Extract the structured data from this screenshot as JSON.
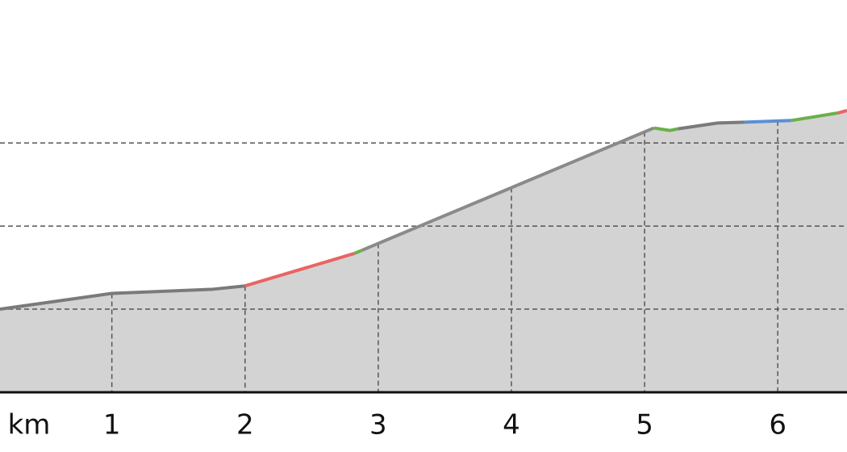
{
  "chart_data": {
    "type": "area",
    "x_label": "km",
    "xlim": [
      0.16,
      6.52
    ],
    "xticks": [
      1,
      2,
      3,
      4,
      5,
      6
    ],
    "ylim": [
      0,
      4.72
    ],
    "yticks": [
      1,
      2,
      3
    ],
    "grid": true,
    "fill": "#d3d3d3",
    "series": [
      {
        "color": "#7a7a7a",
        "x": [
          0.16,
          1.0,
          1.76,
          2.0
        ],
        "values": [
          1.0,
          1.19,
          1.24,
          1.28
        ]
      },
      {
        "color": "#e86565",
        "x": [
          2.0,
          2.82
        ],
        "values": [
          1.28,
          1.67
        ]
      },
      {
        "color": "#6ab04c",
        "x": [
          2.82,
          2.88
        ],
        "values": [
          1.67,
          1.71
        ]
      },
      {
        "color": "#8a8a8a",
        "x": [
          2.88,
          5.07
        ],
        "values": [
          1.71,
          3.18
        ]
      },
      {
        "color": "#6ab04c",
        "x": [
          5.07,
          5.19,
          5.25
        ],
        "values": [
          3.18,
          3.15,
          3.17
        ]
      },
      {
        "color": "#7a7a7a",
        "x": [
          5.25,
          5.55,
          5.75
        ],
        "values": [
          3.17,
          3.24,
          3.25
        ]
      },
      {
        "color": "#5b8fd6",
        "x": [
          5.75,
          6.1
        ],
        "values": [
          3.25,
          3.27
        ]
      },
      {
        "color": "#6ab04c",
        "x": [
          6.1,
          6.45
        ],
        "values": [
          3.27,
          3.36
        ]
      },
      {
        "color": "#e86565",
        "x": [
          6.45,
          6.52
        ],
        "values": [
          3.36,
          3.39
        ]
      }
    ]
  }
}
